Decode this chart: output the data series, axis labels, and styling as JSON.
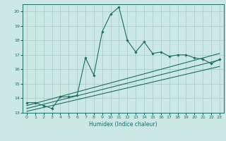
{
  "xlabel": "Humidex (Indice chaleur)",
  "bg_color": "#cce8e5",
  "grid_color": "#aacfcc",
  "line_color": "#1a6e65",
  "xlim": [
    -0.5,
    23.5
  ],
  "ylim": [
    13,
    20.5
  ],
  "yticks": [
    13,
    14,
    15,
    16,
    17,
    18,
    19,
    20
  ],
  "xticks": [
    0,
    1,
    2,
    3,
    4,
    5,
    6,
    7,
    8,
    9,
    10,
    11,
    12,
    13,
    14,
    15,
    16,
    17,
    18,
    19,
    20,
    21,
    22,
    23
  ],
  "main_x": [
    0,
    1,
    2,
    3,
    4,
    5,
    6,
    7,
    8,
    9,
    10,
    11,
    12,
    13,
    14,
    15,
    16,
    17,
    18,
    19,
    20,
    21,
    22,
    23
  ],
  "main_y": [
    13.7,
    13.7,
    13.5,
    13.3,
    14.1,
    14.1,
    14.2,
    16.8,
    15.6,
    18.6,
    19.8,
    20.3,
    18.0,
    17.2,
    17.9,
    17.1,
    17.2,
    16.9,
    17.0,
    17.0,
    16.8,
    16.7,
    16.4,
    16.7
  ],
  "line1_x": [
    0,
    23
  ],
  "line1_y": [
    13.5,
    17.1
  ],
  "line2_x": [
    0,
    23
  ],
  "line2_y": [
    13.3,
    16.65
  ],
  "line3_x": [
    0,
    23
  ],
  "line3_y": [
    13.1,
    16.2
  ]
}
